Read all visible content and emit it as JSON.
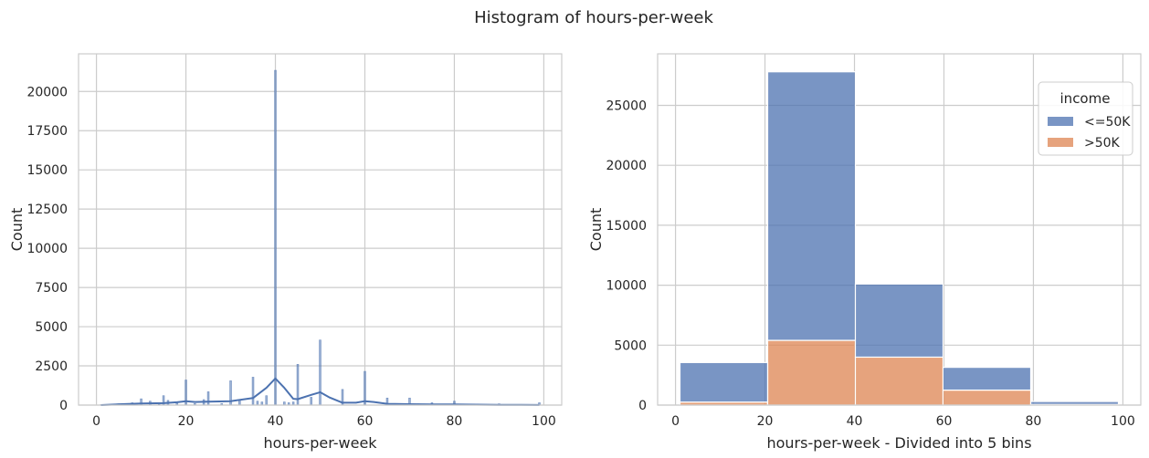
{
  "suptitle": "Histogram of hours-per-week",
  "chart_data": [
    {
      "type": "histogram",
      "subtype": "fine-bin histogram with KDE overlay",
      "color": "#4c72b0",
      "xlabel": "hours-per-week",
      "ylabel": "Count",
      "xlim": [
        -4,
        104
      ],
      "ylim": [
        0,
        22400
      ],
      "xticks": [
        0,
        20,
        40,
        60,
        80,
        100
      ],
      "yticks": [
        0,
        2500,
        5000,
        7500,
        10000,
        12500,
        15000,
        17500,
        20000
      ],
      "grid": true,
      "bars": [
        {
          "x": 1,
          "y": 20
        },
        {
          "x": 2,
          "y": 30
        },
        {
          "x": 3,
          "y": 40
        },
        {
          "x": 4,
          "y": 60
        },
        {
          "x": 5,
          "y": 80
        },
        {
          "x": 6,
          "y": 70
        },
        {
          "x": 7,
          "y": 40
        },
        {
          "x": 8,
          "y": 150
        },
        {
          "x": 9,
          "y": 20
        },
        {
          "x": 10,
          "y": 400
        },
        {
          "x": 12,
          "y": 250
        },
        {
          "x": 14,
          "y": 50
        },
        {
          "x": 15,
          "y": 600
        },
        {
          "x": 16,
          "y": 300
        },
        {
          "x": 18,
          "y": 120
        },
        {
          "x": 20,
          "y": 1600
        },
        {
          "x": 22,
          "y": 100
        },
        {
          "x": 24,
          "y": 350
        },
        {
          "x": 25,
          "y": 850
        },
        {
          "x": 28,
          "y": 100
        },
        {
          "x": 30,
          "y": 1550
        },
        {
          "x": 32,
          "y": 350
        },
        {
          "x": 35,
          "y": 1780
        },
        {
          "x": 36,
          "y": 250
        },
        {
          "x": 37,
          "y": 200
        },
        {
          "x": 38,
          "y": 600
        },
        {
          "x": 40,
          "y": 21350
        },
        {
          "x": 42,
          "y": 200
        },
        {
          "x": 43,
          "y": 150
        },
        {
          "x": 44,
          "y": 200
        },
        {
          "x": 45,
          "y": 2600
        },
        {
          "x": 48,
          "y": 500
        },
        {
          "x": 50,
          "y": 4150
        },
        {
          "x": 55,
          "y": 1000
        },
        {
          "x": 60,
          "y": 2150
        },
        {
          "x": 65,
          "y": 450
        },
        {
          "x": 70,
          "y": 450
        },
        {
          "x": 72,
          "y": 80
        },
        {
          "x": 75,
          "y": 150
        },
        {
          "x": 80,
          "y": 250
        },
        {
          "x": 84,
          "y": 60
        },
        {
          "x": 90,
          "y": 80
        },
        {
          "x": 99,
          "y": 150
        }
      ],
      "kde": {
        "x": [
          1,
          5,
          10,
          15,
          18,
          20,
          22,
          25,
          30,
          35,
          38,
          40,
          42,
          44,
          45,
          48,
          50,
          52,
          55,
          58,
          60,
          62,
          65,
          70,
          75,
          80,
          85,
          90,
          95,
          99
        ],
        "y": [
          0,
          50,
          100,
          120,
          180,
          250,
          200,
          220,
          250,
          450,
          1100,
          1700,
          1100,
          400,
          380,
          650,
          820,
          500,
          150,
          150,
          250,
          200,
          80,
          60,
          40,
          40,
          30,
          20,
          10,
          5
        ]
      }
    },
    {
      "type": "stacked_histogram",
      "xlabel": "hours-per-week - Divided into 5 bins",
      "ylabel": "Count",
      "xlim": [
        -4,
        104
      ],
      "ylim": [
        0,
        29300
      ],
      "xticks": [
        0,
        20,
        40,
        60,
        80,
        100
      ],
      "yticks": [
        0,
        5000,
        10000,
        15000,
        20000,
        25000
      ],
      "grid": true,
      "bin_edges": [
        1,
        20.6,
        40.2,
        59.8,
        79.4,
        99
      ],
      "legend": {
        "title": "income",
        "placement": "upper right"
      },
      "series": [
        {
          "name": "<=50K",
          "color": "#4c72b0",
          "values": [
            3300,
            22400,
            6100,
            1900,
            250
          ]
        },
        {
          "name": ">50K",
          "color": "#dd8452",
          "values": [
            250,
            5400,
            4000,
            1250,
            50
          ]
        }
      ]
    }
  ]
}
